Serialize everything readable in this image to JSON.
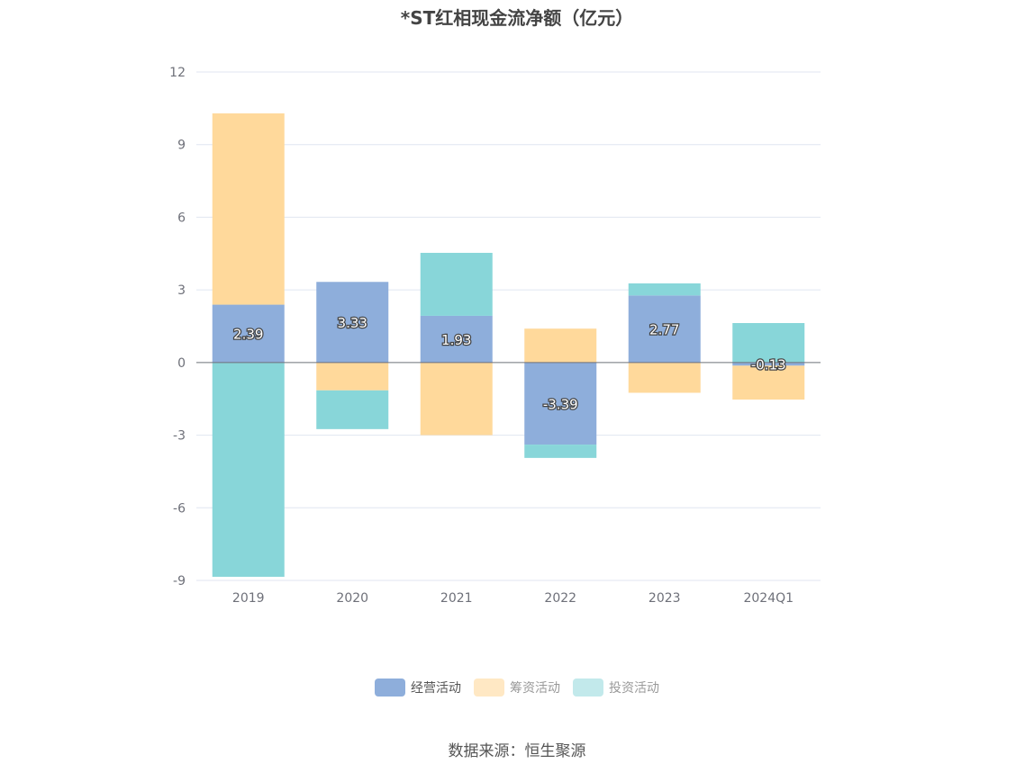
{
  "chart_data": {
    "type": "bar",
    "stacked": true,
    "title": "*ST红相现金流净额（亿元）",
    "categories": [
      "2019",
      "2020",
      "2021",
      "2022",
      "2023",
      "2024Q1"
    ],
    "ylim": [
      -9,
      12
    ],
    "yticks": [
      12,
      9,
      6,
      3,
      0,
      -3,
      -6,
      -9
    ],
    "grid": true,
    "legend_position": "bottom",
    "series": [
      {
        "name": "经营活动",
        "color": "#8eaedb",
        "values": [
          2.39,
          3.33,
          1.93,
          -3.39,
          2.77,
          -0.13
        ],
        "labels": [
          "2.39",
          "3.33",
          "1.93",
          "-3.39",
          "2.77",
          "-0.13"
        ]
      },
      {
        "name": "筹资活动",
        "color": "#ffd99b",
        "values": [
          7.9,
          -1.15,
          -3.0,
          1.4,
          -1.25,
          -1.4
        ]
      },
      {
        "name": "投资活动",
        "color": "#88d6d9",
        "values": [
          -8.85,
          -1.6,
          2.6,
          -0.55,
          0.5,
          1.63
        ]
      }
    ]
  },
  "legend": {
    "items": [
      {
        "label": "经营活动",
        "color": "#8eaedb"
      },
      {
        "label": "筹资活动",
        "color": "#ffe8c4"
      },
      {
        "label": "投资活动",
        "color": "#c2e9eb"
      }
    ]
  },
  "source": "数据来源：恒生聚源"
}
